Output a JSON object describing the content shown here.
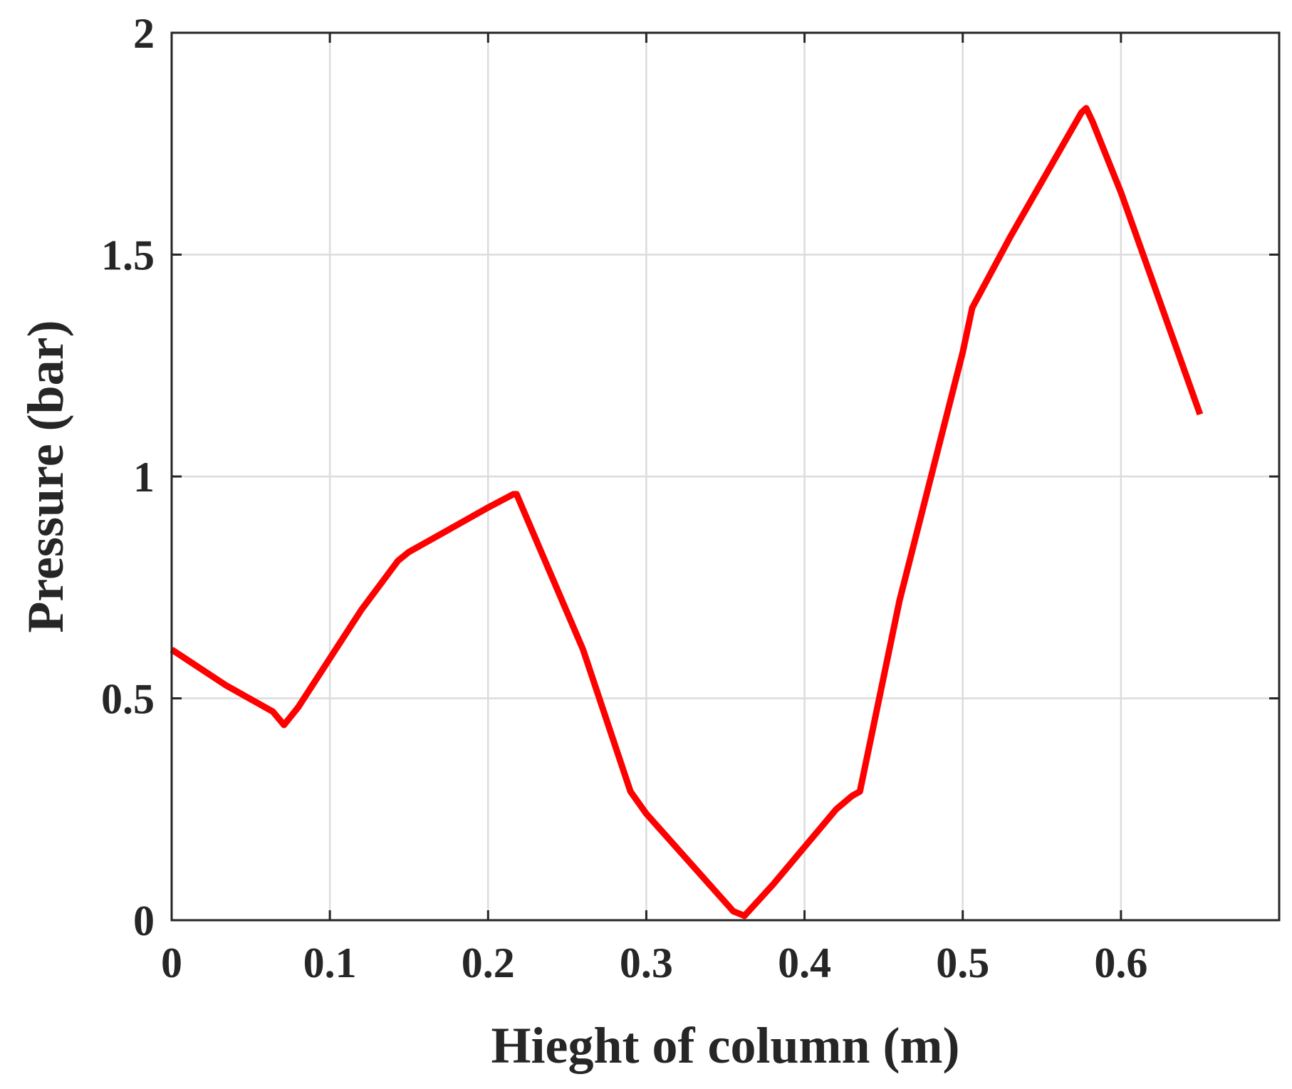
{
  "chart_data": {
    "type": "line",
    "title": "",
    "xlabel": "Hieght of column (m)",
    "ylabel": "Pressure (bar)",
    "xlim": [
      0,
      0.7
    ],
    "ylim": [
      0,
      2
    ],
    "grid": true,
    "xticks": [
      0,
      0.1,
      0.2,
      0.3,
      0.4,
      0.5,
      0.6
    ],
    "xtick_labels": [
      "0",
      "0.1",
      "0.2",
      "0.3",
      "0.4",
      "0.5",
      "0.6"
    ],
    "yticks": [
      0,
      0.5,
      1,
      1.5,
      2
    ],
    "ytick_labels": [
      "0",
      "0.5",
      "1",
      "1.5",
      "2"
    ],
    "series": [
      {
        "color": "#ff0000",
        "x": [
          0,
          0.034,
          0.064,
          0.071,
          0.08,
          0.1,
          0.12,
          0.143,
          0.15,
          0.16,
          0.19,
          0.2,
          0.216,
          0.218,
          0.23,
          0.26,
          0.29,
          0.3,
          0.33,
          0.355,
          0.362,
          0.38,
          0.42,
          0.43,
          0.435,
          0.46,
          0.5,
          0.506,
          0.53,
          0.575,
          0.578,
          0.582,
          0.6,
          0.62,
          0.65
        ],
        "values": [
          0.61,
          0.53,
          0.47,
          0.44,
          0.48,
          0.59,
          0.7,
          0.81,
          0.83,
          0.85,
          0.91,
          0.93,
          0.96,
          0.96,
          0.86,
          0.61,
          0.29,
          0.24,
          0.12,
          0.02,
          0.01,
          0.08,
          0.25,
          0.28,
          0.29,
          0.72,
          1.28,
          1.38,
          1.54,
          1.82,
          1.83,
          1.8,
          1.64,
          1.44,
          1.14
        ]
      }
    ]
  }
}
